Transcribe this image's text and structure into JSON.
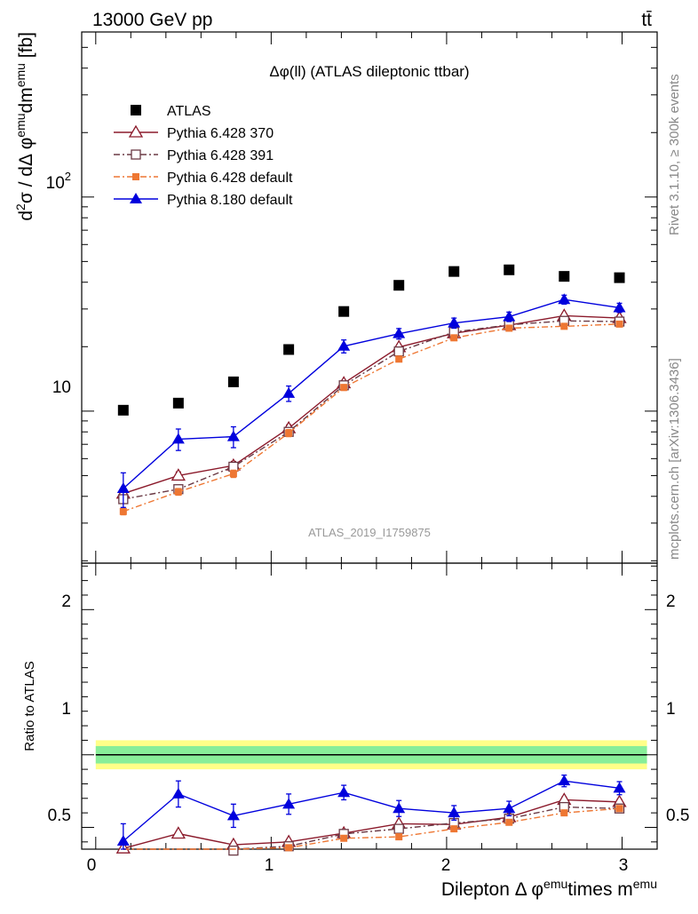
{
  "header": {
    "energy_label": "13000 GeV pp",
    "process_label": "tt̄"
  },
  "side_labels": {
    "rivet": "Rivet 3.1.10, ≥ 300k events",
    "mcplots": "mcplots.cern.ch [arXiv:1306.3436]"
  },
  "chart_data": [
    {
      "type": "line",
      "title": "Δφ(ll) (ATLAS dileptonic ttbar)",
      "watermark": "ATLAS_2019_I1759875",
      "ylabel": "d²σ / dΔ φ^emu dm^emu [fb]",
      "yscale": "log",
      "ylim": [
        1.95,
        590
      ],
      "xlim": [
        -0.08,
        3.2
      ],
      "y_tick_labels": [
        "10",
        "10²"
      ],
      "x": [
        0.157,
        0.471,
        0.785,
        1.1,
        1.414,
        1.728,
        2.042,
        2.356,
        2.67,
        2.985
      ],
      "series": [
        {
          "name": "ATLAS",
          "color": "#000000",
          "marker": "square-filled",
          "line": "none",
          "values": [
            10.1,
            10.9,
            13.7,
            19.4,
            29.2,
            38.7,
            44.9,
            45.7,
            42.6,
            42.0
          ]
        },
        {
          "name": "Pythia 6.428 370",
          "color": "#8b1a2b",
          "marker": "triangle-open",
          "line": "solid",
          "values": [
            4.12,
            5.0,
            5.57,
            8.32,
            13.5,
            19.9,
            23.1,
            25.2,
            27.9,
            27.2
          ],
          "err": [
            0.15,
            0.2,
            0.25,
            0.3,
            0.4,
            0.5,
            0.6,
            0.6,
            0.7,
            0.7
          ]
        },
        {
          "name": "Pythia 6.428 391",
          "color": "#6b3a45",
          "marker": "square-open",
          "line": "dashdot",
          "values": [
            3.88,
            4.32,
            5.5,
            8.0,
            13.2,
            19.0,
            23.4,
            25.3,
            26.4,
            26.2
          ],
          "err": [
            0.15,
            0.2,
            0.25,
            0.3,
            0.4,
            0.5,
            0.6,
            0.6,
            0.7,
            0.7
          ]
        },
        {
          "name": "Pythia 6.428 default",
          "color": "#ee7733",
          "marker": "square-filled-small",
          "line": "dashdot",
          "values": [
            3.4,
            4.2,
            5.1,
            7.9,
            12.9,
            17.5,
            22.0,
            24.4,
            24.9,
            25.5
          ],
          "err": [
            0.12,
            0.15,
            0.2,
            0.3,
            0.4,
            0.5,
            0.6,
            0.6,
            0.7,
            0.7
          ]
        },
        {
          "name": "Pythia 8.180 default",
          "color": "#0000dd",
          "marker": "triangle-filled",
          "line": "solid",
          "values": [
            4.35,
            7.4,
            7.6,
            12.1,
            20.1,
            23.0,
            25.8,
            27.6,
            33.2,
            30.4
          ],
          "err": [
            0.8,
            0.85,
            0.85,
            1.0,
            1.4,
            1.3,
            1.4,
            1.4,
            1.6,
            1.5
          ]
        }
      ]
    },
    {
      "type": "line",
      "ylabel": "Ratio to ATLAS",
      "xlabel": "Dilepton Δ φ^emu times m^emu",
      "ylim": [
        0.35,
        2.32
      ],
      "xlim": [
        -0.08,
        3.2
      ],
      "x_tick_labels": [
        "0",
        "1",
        "2",
        "3"
      ],
      "y_tick_labels": [
        "0.5",
        "1",
        "2"
      ],
      "reference": 1.0,
      "band_inner": [
        0.94,
        1.06
      ],
      "band_outer": [
        0.9,
        1.1
      ],
      "x": [
        0.157,
        0.471,
        0.785,
        1.1,
        1.414,
        1.728,
        2.042,
        2.356,
        2.67,
        2.985
      ],
      "series": [
        {
          "name": "Pythia 6.428 370",
          "color": "#8b1a2b",
          "marker": "triangle-open",
          "line": "solid",
          "values": [
            0.355,
            0.457,
            0.38,
            0.4,
            0.46,
            0.525,
            0.52,
            0.57,
            0.69,
            0.675
          ],
          "err": [
            0.01,
            0.015,
            0.01,
            0.01,
            0.012,
            0.015,
            0.015,
            0.015,
            0.02,
            0.02
          ]
        },
        {
          "name": "Pythia 6.428 391",
          "color": "#6b3a45",
          "marker": "square-open",
          "line": "dashdot",
          "values": [
            0.3,
            0.31,
            0.34,
            0.37,
            0.455,
            0.49,
            0.53,
            0.56,
            0.64,
            0.63
          ],
          "err": [
            0.01,
            0.01,
            0.01,
            0.01,
            0.012,
            0.012,
            0.015,
            0.015,
            0.015,
            0.015
          ]
        },
        {
          "name": "Pythia 6.428 default",
          "color": "#ee7733",
          "marker": "square-filled-small",
          "line": "dashdot",
          "values": [
            0.28,
            0.3,
            0.33,
            0.36,
            0.425,
            0.435,
            0.49,
            0.535,
            0.6,
            0.63
          ],
          "err": [
            0.01,
            0.01,
            0.01,
            0.01,
            0.012,
            0.012,
            0.012,
            0.015,
            0.015,
            0.015
          ]
        },
        {
          "name": "Pythia 8.180 default",
          "color": "#0000dd",
          "marker": "triangle-filled",
          "line": "solid",
          "values": [
            0.405,
            0.73,
            0.58,
            0.66,
            0.74,
            0.63,
            0.6,
            0.63,
            0.82,
            0.77
          ],
          "err": [
            0.12,
            0.09,
            0.08,
            0.07,
            0.05,
            0.055,
            0.05,
            0.05,
            0.04,
            0.045
          ]
        }
      ]
    }
  ]
}
